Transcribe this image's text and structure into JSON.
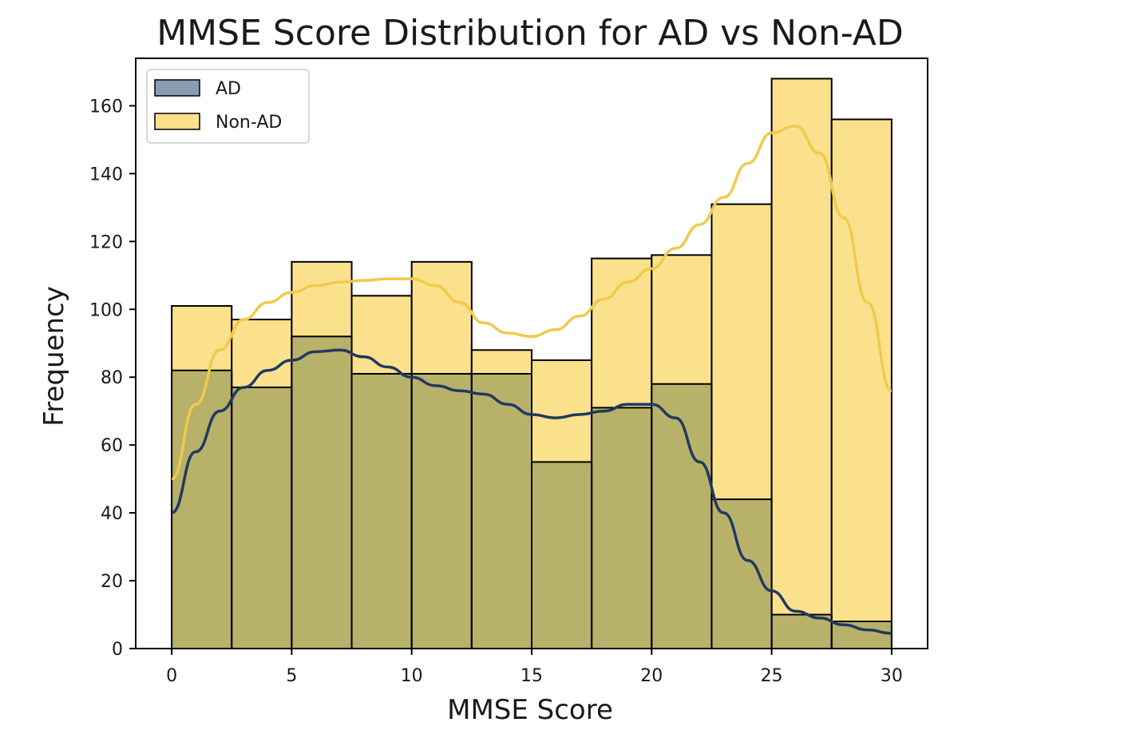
{
  "chart_data": {
    "type": "bar",
    "title": "MMSE Score Distribution for AD vs Non-AD",
    "xlabel": "MMSE Score",
    "ylabel": "Frequency",
    "xlim": [
      -1.5,
      31.5
    ],
    "ylim": [
      0,
      174
    ],
    "xticks": [
      0,
      5,
      10,
      15,
      20,
      25,
      30
    ],
    "yticks": [
      0,
      20,
      40,
      60,
      80,
      100,
      120,
      140,
      160
    ],
    "bin_edges": [
      0,
      2.5,
      5,
      7.5,
      10,
      12.5,
      15,
      17.5,
      20,
      22.5,
      25,
      27.5,
      30
    ],
    "grid": false,
    "legend_position": "upper-left",
    "series": [
      {
        "name": "AD",
        "color": "#1f3a5f",
        "bar_color": "#8a9cb3",
        "values": [
          82,
          77,
          92,
          81,
          81,
          81,
          55,
          71,
          78,
          44,
          10,
          8
        ],
        "kde": {
          "x": [
            0,
            1,
            2,
            3,
            4,
            5,
            6,
            7,
            8,
            9,
            10,
            11,
            12,
            13,
            14,
            15,
            16,
            17,
            18,
            19,
            20,
            21,
            22,
            23,
            24,
            25,
            26,
            27,
            28,
            29,
            30
          ],
          "y": [
            40,
            58,
            70,
            77,
            82,
            85,
            87.5,
            88,
            86,
            83,
            80,
            77.5,
            76,
            75,
            72,
            69,
            68,
            69,
            70,
            72,
            72,
            68,
            55,
            40,
            26,
            17,
            11,
            9,
            7,
            5.5,
            4.5
          ]
        }
      },
      {
        "name": "Non-AD",
        "color": "#f2c94c",
        "bar_color": "#fbe18c",
        "values": [
          101,
          97,
          114,
          104,
          114,
          88,
          85,
          115,
          116,
          131,
          168,
          156
        ],
        "kde": {
          "x": [
            0,
            1,
            2,
            3,
            4,
            5,
            6,
            7,
            8,
            9,
            10,
            11,
            12,
            13,
            14,
            15,
            16,
            17,
            18,
            19,
            20,
            21,
            22,
            23,
            24,
            25,
            26,
            27,
            28,
            29,
            30
          ],
          "y": [
            50,
            72,
            88,
            97,
            102,
            105,
            107,
            108,
            108.5,
            109,
            109,
            107,
            102,
            96,
            93,
            92,
            94,
            98,
            103,
            108,
            112,
            118,
            125,
            133,
            143,
            152,
            154,
            146,
            127,
            102,
            76
          ]
        }
      }
    ]
  }
}
